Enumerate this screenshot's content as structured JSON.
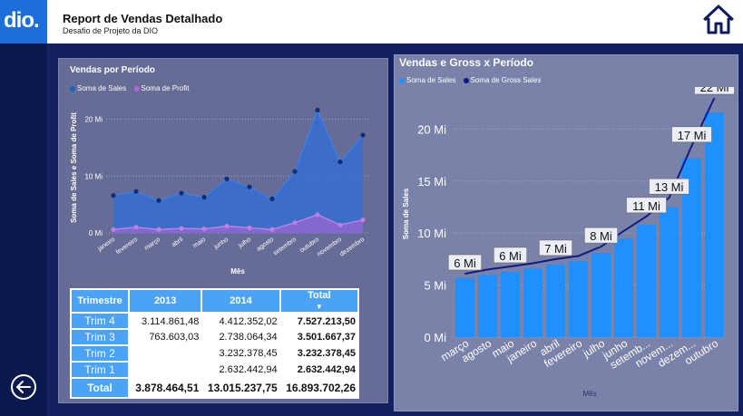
{
  "header": {
    "logo_text": "dio.",
    "title": "Report de Vendas Detalhado",
    "subtitle": "Desafio de Projeto da DIO"
  },
  "icons": {
    "home": "home-icon",
    "back": "arrow-left-circle-icon"
  },
  "colors": {
    "header_bg": "#ffffff",
    "background": "#0e1d57",
    "bar": "#1e90ff",
    "sales": "#1565c0",
    "profit": "#b065d8"
  },
  "left_chart": {
    "title": "Vendas por Período",
    "legend": [
      "Soma de  Sales",
      "Soma de Profit"
    ],
    "ylabel": "Soma de Sales e Soma de Profit",
    "xlabel": "Mês",
    "yticks": [
      "0 Mi",
      "10 Mi",
      "20 Mi"
    ]
  },
  "right_chart": {
    "title": "Vendas e Gross x Período",
    "legend": [
      "Soma de  Sales",
      "Soma de Gross Sales"
    ],
    "ylabel": "Soma de Sales",
    "xlabel": "Mês",
    "yticks": [
      "0 Mi",
      "5 Mi",
      "10 Mi",
      "15 Mi",
      "20 Mi"
    ]
  },
  "chart_data": [
    {
      "type": "area",
      "title": "Vendas por Período",
      "categories": [
        "janeiro",
        "fevereiro",
        "março",
        "abril",
        "maio",
        "junho",
        "julho",
        "agosto",
        "setembro",
        "outubro",
        "novembro",
        "dezembro"
      ],
      "series": [
        {
          "name": "Soma de  Sales",
          "values": [
            6.6,
            7.3,
            5.7,
            7.0,
            6.3,
            9.5,
            8.1,
            6.0,
            10.8,
            21.6,
            12.5,
            17.2
          ]
        },
        {
          "name": "Soma de Profit",
          "values": [
            0.6,
            1.0,
            0.6,
            0.8,
            0.7,
            1.2,
            0.9,
            0.6,
            1.8,
            3.2,
            1.4,
            2.3
          ]
        }
      ],
      "xlabel": "Mês",
      "ylabel": "Soma de Sales e Soma de Profit",
      "ylim": [
        0,
        22
      ],
      "grid": true,
      "legend": "top-left"
    },
    {
      "type": "bar",
      "title": "Vendas e Gross x Período",
      "categories": [
        "março",
        "agosto",
        "maio",
        "janeiro",
        "abril",
        "fevereiro",
        "julho",
        "junho",
        "setembro",
        "novembro",
        "dezembro",
        "outubro"
      ],
      "category_labels": [
        "março",
        "agosto",
        "maio",
        "janeiro",
        "abril",
        "fevereiro",
        "julho",
        "junho",
        "setemb...",
        "novem...",
        "dezem...",
        "outubro"
      ],
      "series": [
        {
          "name": "Soma de  Sales",
          "values": [
            5.7,
            6.0,
            6.3,
            6.6,
            7.0,
            7.3,
            8.1,
            9.5,
            10.8,
            12.5,
            17.2,
            21.6
          ]
        },
        {
          "name": "Soma de Gross Sales",
          "values": [
            6.1,
            6.5,
            6.8,
            7.1,
            7.5,
            7.8,
            8.7,
            10.2,
            11.6,
            13.4,
            18.4,
            23.0
          ]
        }
      ],
      "data_labels": [
        "6 Mi",
        null,
        "6 Mi",
        null,
        "7 Mi",
        null,
        "8 Mi",
        null,
        "11 Mi",
        "13 Mi",
        "17 Mi",
        "22 Mi"
      ],
      "xlabel": "Mês",
      "ylabel": "Soma de Sales",
      "ylim": [
        0,
        23
      ],
      "grid": true,
      "legend": "top-left"
    }
  ],
  "matrix": {
    "headers": [
      "Trimestre",
      "2013",
      "2014",
      "Total"
    ],
    "rows": [
      {
        "label": "Trim 4",
        "y2013": "3.114.861,48",
        "y2014": "4.412.352,02",
        "total": "7.527.213,50"
      },
      {
        "label": "Trim 3",
        "y2013": "763.603,03",
        "y2014": "2.738.064,34",
        "total": "3.501.667,37"
      },
      {
        "label": "Trim 2",
        "y2013": "",
        "y2014": "3.232.378,45",
        "total": "3.232.378,45"
      },
      {
        "label": "Trim 1",
        "y2013": "",
        "y2014": "2.632.442,94",
        "total": "2.632.442,94"
      }
    ],
    "total_row": {
      "label": "Total",
      "y2013": "3.878.464,51",
      "y2014": "13.015.237,75",
      "total": "16.893.702,26"
    }
  }
}
